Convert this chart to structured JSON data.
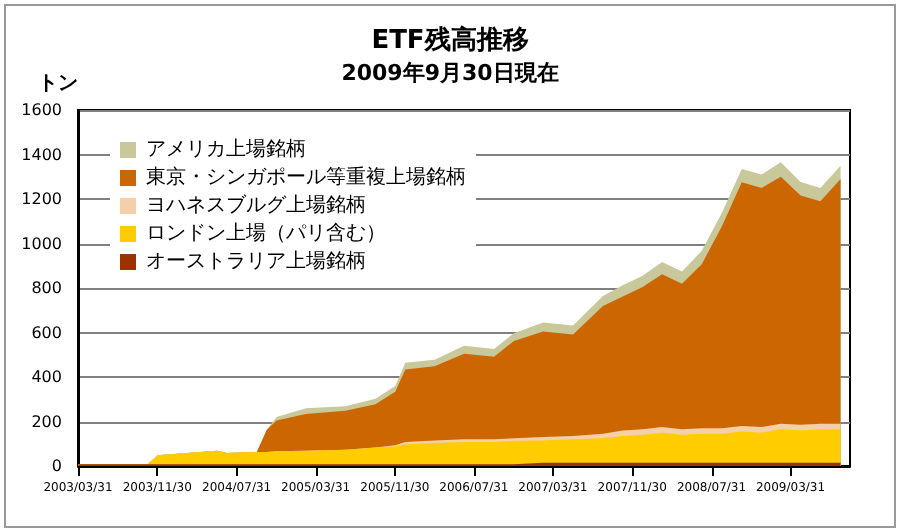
{
  "chart_data": {
    "type": "area",
    "stacked": true,
    "title": "ETF残高推移",
    "subtitle": "2009年9月30日現在",
    "ylabel": "トン",
    "x": [
      "2003-04",
      "2003-11",
      "2003-12",
      "2004-06",
      "2004-07",
      "2004-10",
      "2004-11",
      "2004-12",
      "2005-03",
      "2005-07",
      "2005-10",
      "2005-12",
      "2006-01",
      "2006-04",
      "2006-07",
      "2006-10",
      "2006-12",
      "2007-03",
      "2007-06",
      "2007-09",
      "2007-11",
      "2008-01",
      "2008-03",
      "2008-05",
      "2008-07",
      "2008-09",
      "2008-11",
      "2009-01",
      "2009-03",
      "2009-05",
      "2009-07",
      "2009-09"
    ],
    "xlim": [
      "2003-03-31",
      "2009-09-30"
    ],
    "xticks": [
      {
        "value": "2003-03-31",
        "label": "2003/03/31"
      },
      {
        "value": "2003-11-30",
        "label": "2003/11/30"
      },
      {
        "value": "2004-07-31",
        "label": "2004/07/31"
      },
      {
        "value": "2005-03-31",
        "label": "2005/03/31"
      },
      {
        "value": "2005-11-30",
        "label": "2005/11/30"
      },
      {
        "value": "2006-07-31",
        "label": "2006/07/31"
      },
      {
        "value": "2007-03-31",
        "label": "2007/03/31"
      },
      {
        "value": "2007-11-30",
        "label": "2007/11/30"
      },
      {
        "value": "2008-07-31",
        "label": "2008/07/31"
      },
      {
        "value": "2009-03-31",
        "label": "2009/03/31"
      }
    ],
    "ylim": [
      0,
      1600
    ],
    "yticks": [
      0,
      200,
      400,
      600,
      800,
      1000,
      1200,
      1400,
      1600
    ],
    "grid": "y",
    "legend": "top left",
    "series": [
      {
        "name": "オーストラリア上場銘柄",
        "color": "#993300",
        "values": [
          8,
          8,
          8,
          8,
          8,
          8,
          8,
          8,
          8,
          8,
          8,
          8,
          8,
          8,
          8,
          8,
          8,
          15,
          15,
          15,
          15,
          15,
          15,
          15,
          15,
          15,
          15,
          15,
          15,
          15,
          15,
          15
        ]
      },
      {
        "name": "ロンドン上場（パリ含む）",
        "color": "#ffcc00",
        "values": [
          0,
          0,
          40,
          60,
          50,
          55,
          55,
          58,
          60,
          65,
          75,
          80,
          90,
          95,
          100,
          100,
          105,
          100,
          105,
          110,
          120,
          125,
          135,
          125,
          130,
          130,
          140,
          135,
          150,
          145,
          150,
          150
        ]
      },
      {
        "name": "ヨハネスブルグ上場銘柄",
        "color": "#f5cfa8",
        "values": [
          0,
          0,
          0,
          0,
          0,
          0,
          0,
          0,
          0,
          0,
          0,
          5,
          10,
          12,
          12,
          12,
          12,
          15,
          15,
          20,
          25,
          25,
          25,
          25,
          25,
          25,
          25,
          25,
          25,
          25,
          25,
          25
        ]
      },
      {
        "name": "東京・シンガポール等重複上場銘柄",
        "color": "#cc6600",
        "values": [
          0,
          0,
          0,
          0,
          0,
          0,
          100,
          139,
          166,
          175,
          194,
          241,
          326,
          333,
          385,
          371,
          437,
          475,
          456,
          574,
          602,
          640,
          687,
          654,
          737,
          908,
          1095,
          1075,
          1110,
          1031,
          1000,
          1100
        ]
      },
      {
        "name": "アメリカ上場銘柄",
        "color": "#c8c89a",
        "values": [
          0,
          0,
          0,
          0,
          0,
          0,
          0,
          15,
          25,
          20,
          25,
          25,
          30,
          30,
          35,
          35,
          35,
          40,
          40,
          45,
          50,
          50,
          55,
          55,
          60,
          60,
          60,
          60,
          65,
          60,
          60,
          60
        ]
      }
    ]
  }
}
